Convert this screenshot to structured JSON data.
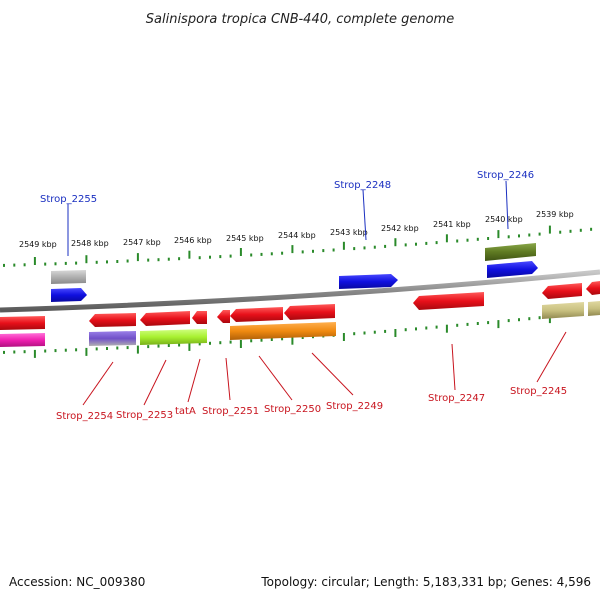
{
  "title": "Salinispora tropica CNB-440, complete genome",
  "footer": {
    "accession": "Accession: NC_009380",
    "topology": "Topology: circular; Length: 5,183,331 bp; Genes: 4,596"
  },
  "scale_labels": [
    "2549 kbp",
    "2548 kbp",
    "2547 kbp",
    "2546 kbp",
    "2545 kbp",
    "2544 kbp",
    "2543 kbp",
    "2542 kbp",
    "2541 kbp",
    "2540 kbp",
    "2539 kbp"
  ],
  "top_labels": [
    "Strop_2255",
    "Strop_2248",
    "Strop_2246"
  ],
  "bottom_labels": [
    "Strop_2254",
    "Strop_2253",
    "tatA",
    "Strop_2251",
    "Strop_2250",
    "Strop_2249",
    "Strop_2247",
    "Strop_2245"
  ],
  "colors": {
    "label_top": "#1a2fc0",
    "label_bottom": "#c8141e",
    "tick": "#2a8a2a",
    "backbone": "#888888",
    "gene_red": "#e8101a",
    "gene_blue": "#1010e0",
    "gene_grey": "#b0b0b0",
    "gene_olive": "#5f7a22",
    "gene_pink": "#f020b0",
    "gene_purple": "#7050c8",
    "gene_lime": "#a8f030",
    "gene_orange": "#f08a10",
    "gene_khaki": "#c8c080"
  }
}
